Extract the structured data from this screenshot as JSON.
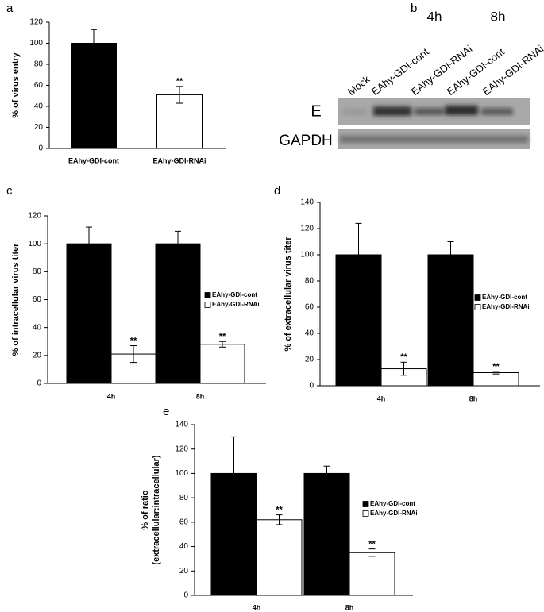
{
  "chart_data": [
    {
      "type": "bar",
      "label": "a",
      "ylabel": [
        "% of virus entry"
      ],
      "categories": [
        "EAhy-GDI-cont",
        "EAhy-GDI-RNAi"
      ],
      "values": [
        100,
        51
      ],
      "errors": [
        13,
        8
      ],
      "colors": [
        "#000000",
        "#ffffff"
      ],
      "significance": [
        null,
        "**"
      ],
      "ylim": [
        0,
        120
      ],
      "yticks": [
        0,
        20,
        40,
        60,
        80,
        100,
        120
      ]
    },
    {
      "type": "grouped_bar",
      "label": "c",
      "ylabel": [
        "% of intracellular virus titer"
      ],
      "categories": [
        "4h",
        "8h"
      ],
      "series": [
        {
          "name": "EAhy-GDI-cont",
          "color": "#000000",
          "values": [
            100,
            100
          ],
          "errors": [
            12,
            9
          ],
          "significance": [
            null,
            null
          ]
        },
        {
          "name": "EAhy-GDI-RNAi",
          "color": "#ffffff",
          "values": [
            21,
            28
          ],
          "errors": [
            6,
            2
          ],
          "significance": [
            "**",
            "**"
          ]
        }
      ],
      "ylim": [
        0,
        120
      ],
      "yticks": [
        0,
        20,
        40,
        60,
        80,
        100,
        120
      ],
      "legend": "right"
    },
    {
      "type": "grouped_bar",
      "label": "d",
      "ylabel": [
        "% of extracellular virus titer"
      ],
      "categories": [
        "4h",
        "8h"
      ],
      "series": [
        {
          "name": "EAhy-GDI-cont",
          "color": "#000000",
          "values": [
            100,
            100
          ],
          "errors": [
            24,
            10
          ],
          "significance": [
            null,
            null
          ]
        },
        {
          "name": "EAhy-GDI-RNAi",
          "color": "#ffffff",
          "values": [
            13,
            10
          ],
          "errors": [
            5,
            1
          ],
          "significance": [
            "**",
            "**"
          ]
        }
      ],
      "ylim": [
        0,
        140
      ],
      "yticks": [
        0,
        20,
        40,
        60,
        80,
        100,
        120,
        140
      ],
      "legend": "right"
    },
    {
      "type": "grouped_bar",
      "label": "e",
      "ylabel": [
        "% of ratio",
        "(extracellular:intracellular)"
      ],
      "categories": [
        "4h",
        "8h"
      ],
      "series": [
        {
          "name": "EAhy-GDI-cont",
          "color": "#000000",
          "values": [
            100,
            100
          ],
          "errors": [
            30,
            6
          ],
          "significance": [
            null,
            null
          ]
        },
        {
          "name": "EAhy-GDI-RNAi",
          "color": "#ffffff",
          "values": [
            62,
            35
          ],
          "errors": [
            4,
            3
          ],
          "significance": [
            "**",
            "**"
          ]
        }
      ],
      "ylim": [
        0,
        140
      ],
      "yticks": [
        0,
        20,
        40,
        60,
        80,
        100,
        120,
        140
      ],
      "legend": "right"
    }
  ],
  "blot": {
    "label": "b",
    "times": [
      "4h",
      "8h"
    ],
    "lanes": [
      "Mock",
      "EAhy-GDI-cont",
      "EAhy-GDI-RNAi",
      "EAhy-GDI-cont",
      "EAhy-GDI-RNAi"
    ],
    "rows": [
      "E",
      "GAPDH"
    ]
  }
}
